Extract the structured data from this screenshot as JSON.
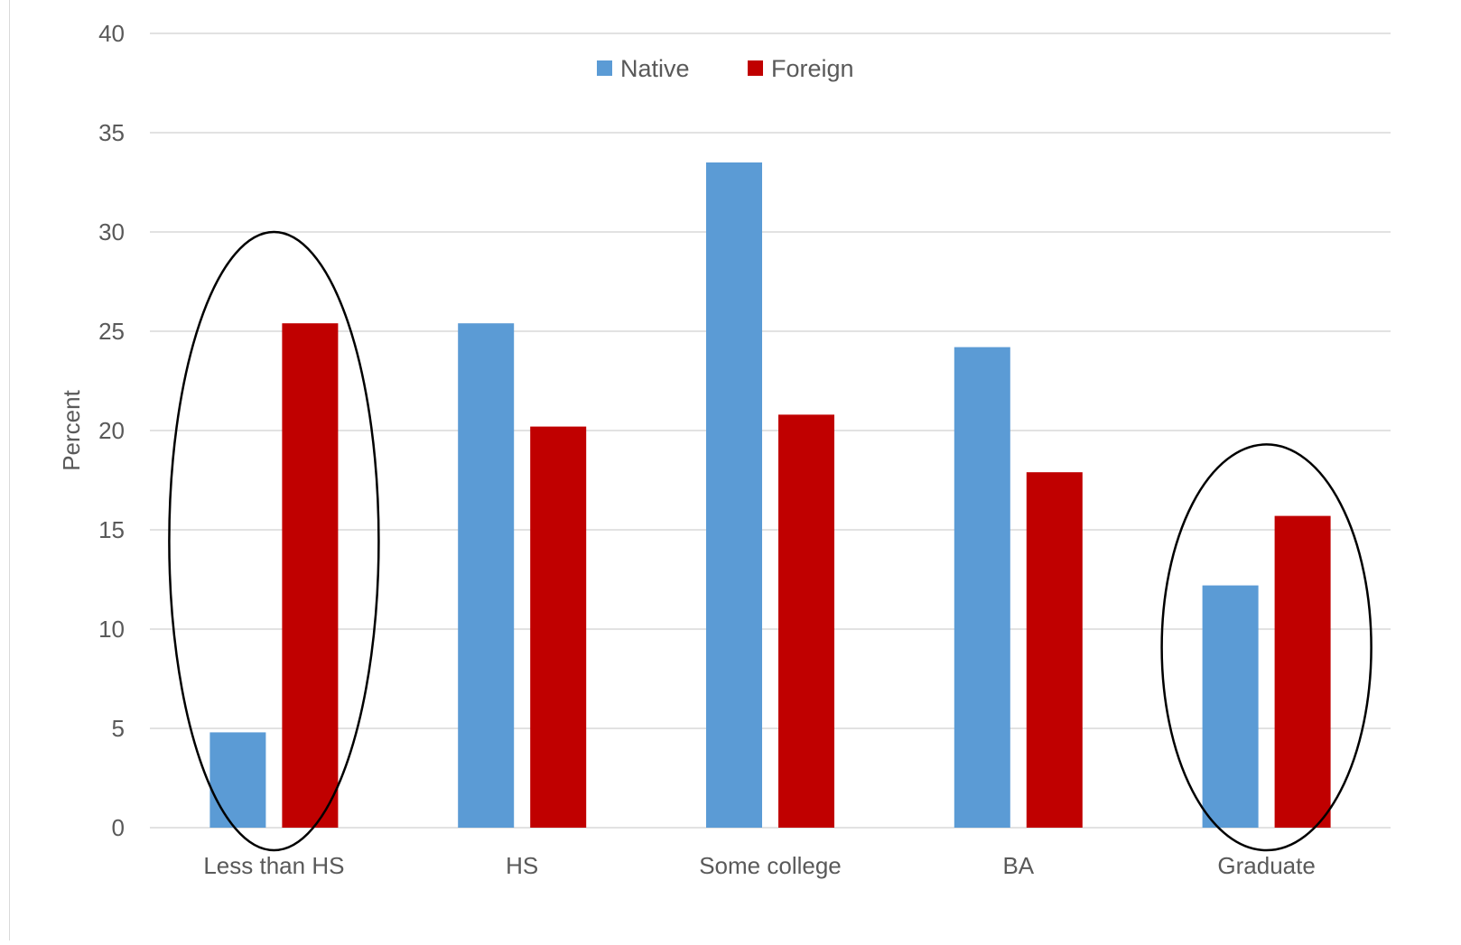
{
  "chart_data": {
    "type": "bar",
    "title": "",
    "xlabel": "",
    "ylabel": "Percent",
    "ylim": [
      0,
      40
    ],
    "yticks": [
      0,
      5,
      10,
      15,
      20,
      25,
      30,
      35,
      40
    ],
    "grid": true,
    "legend_position": "top-center",
    "categories": [
      "Less than HS",
      "HS",
      "Some college",
      "BA",
      "Graduate"
    ],
    "series": [
      {
        "name": "Native",
        "color": "#5b9bd5",
        "values": [
          4.8,
          25.4,
          33.5,
          24.2,
          12.2
        ]
      },
      {
        "name": "Foreign",
        "color": "#c00000",
        "values": [
          25.4,
          20.2,
          20.8,
          17.9,
          15.7
        ]
      }
    ],
    "annotations": [
      {
        "shape": "ellipse",
        "category": "Less than HS",
        "y_range": [
          -1,
          30
        ]
      },
      {
        "shape": "ellipse",
        "category": "Graduate",
        "y_range": [
          -1,
          19.3
        ]
      }
    ]
  }
}
